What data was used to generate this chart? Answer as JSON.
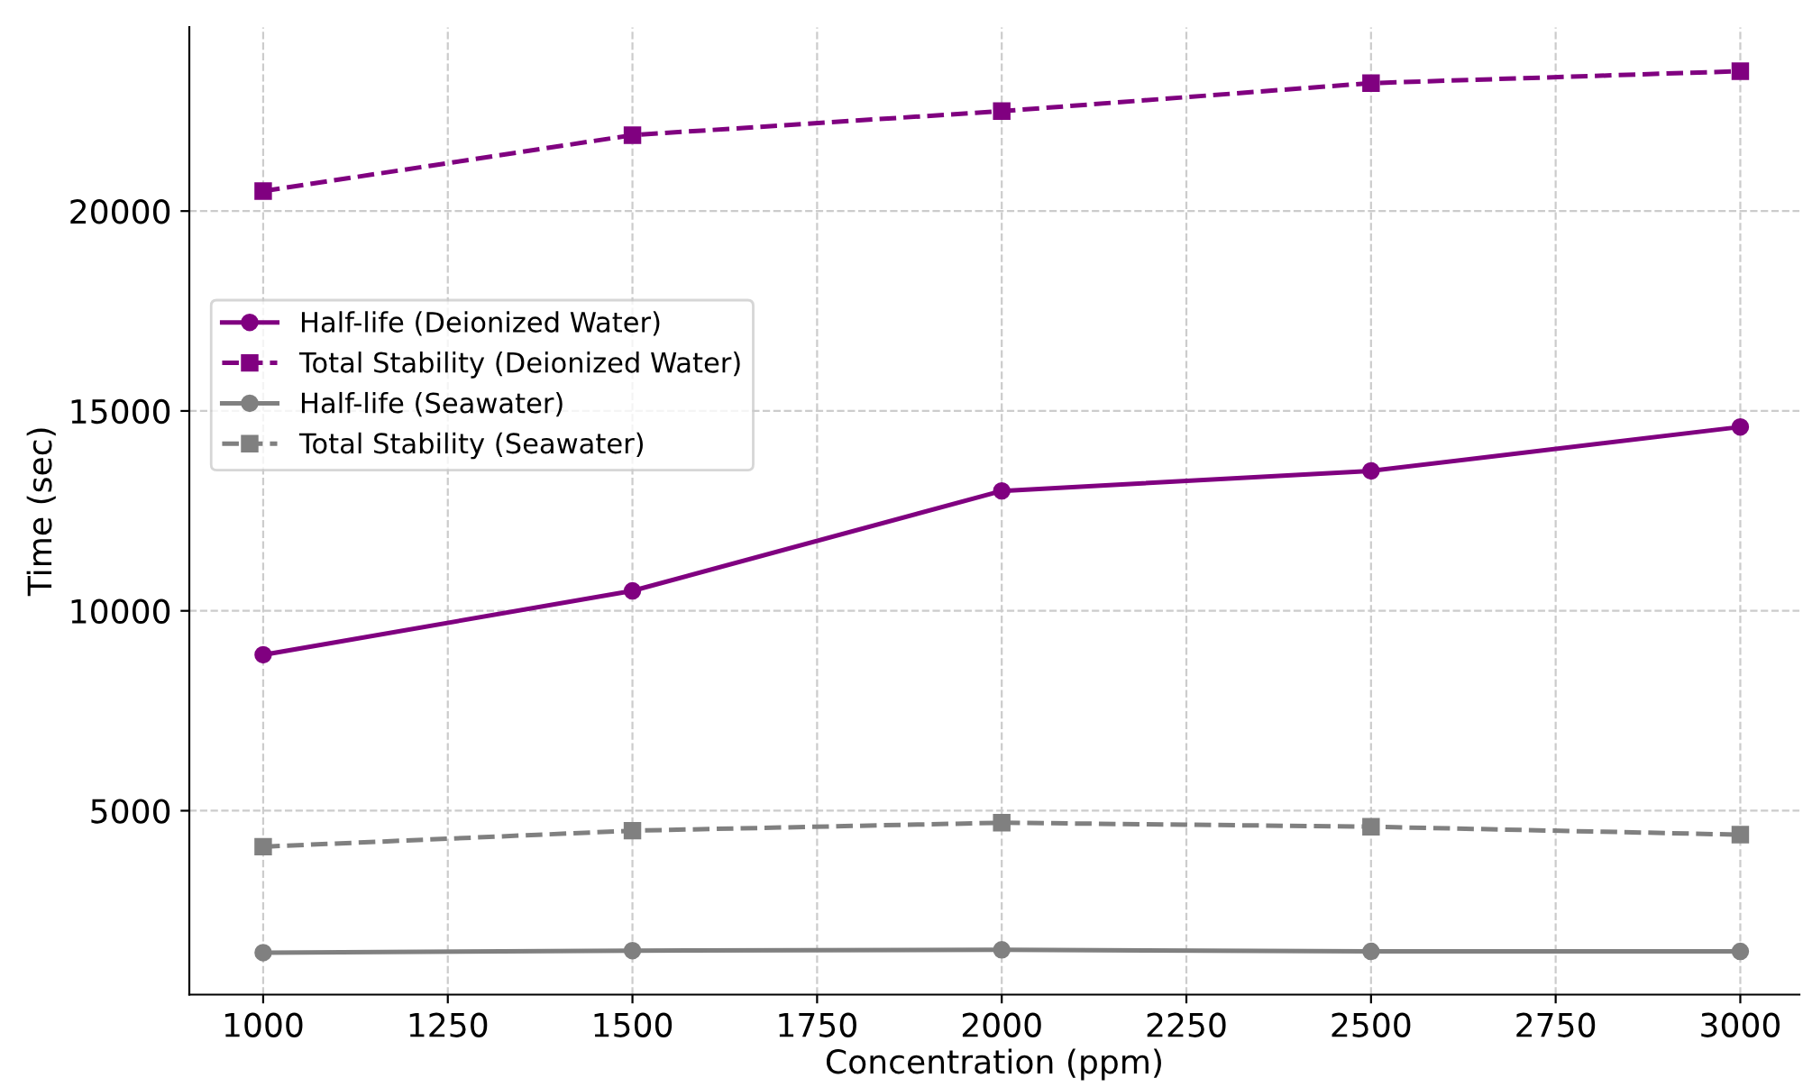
{
  "chart_data": {
    "type": "line",
    "xlabel": "Concentration (ppm)",
    "ylabel": "Time (sec)",
    "x": [
      1000,
      1500,
      2000,
      2500,
      3000
    ],
    "series": [
      {
        "name": "Half-life (Deionized Water)",
        "color": "#800080",
        "marker": "circle",
        "line_style": "solid",
        "values": [
          8900,
          10500,
          13000,
          13500,
          14600
        ]
      },
      {
        "name": "Total Stability (Deionized Water)",
        "color": "#800080",
        "marker": "square",
        "line_style": "dashed",
        "values": [
          20500,
          21900,
          22500,
          23200,
          23500
        ]
      },
      {
        "name": "Half-life (Seawater)",
        "color": "#808080",
        "marker": "circle",
        "line_style": "solid",
        "values": [
          1450,
          1500,
          1520,
          1480,
          1480
        ]
      },
      {
        "name": "Total Stability (Seawater)",
        "color": "#808080",
        "marker": "square",
        "line_style": "dashed",
        "values": [
          4100,
          4500,
          4700,
          4600,
          4400
        ]
      }
    ],
    "xlim": [
      900,
      3080
    ],
    "ylim": [
      400,
      24600
    ],
    "xticks": [
      1000,
      1250,
      1500,
      1750,
      2000,
      2250,
      2500,
      2750,
      3000
    ],
    "yticks": [
      5000,
      10000,
      15000,
      20000
    ],
    "grid": true,
    "legend": "left"
  }
}
